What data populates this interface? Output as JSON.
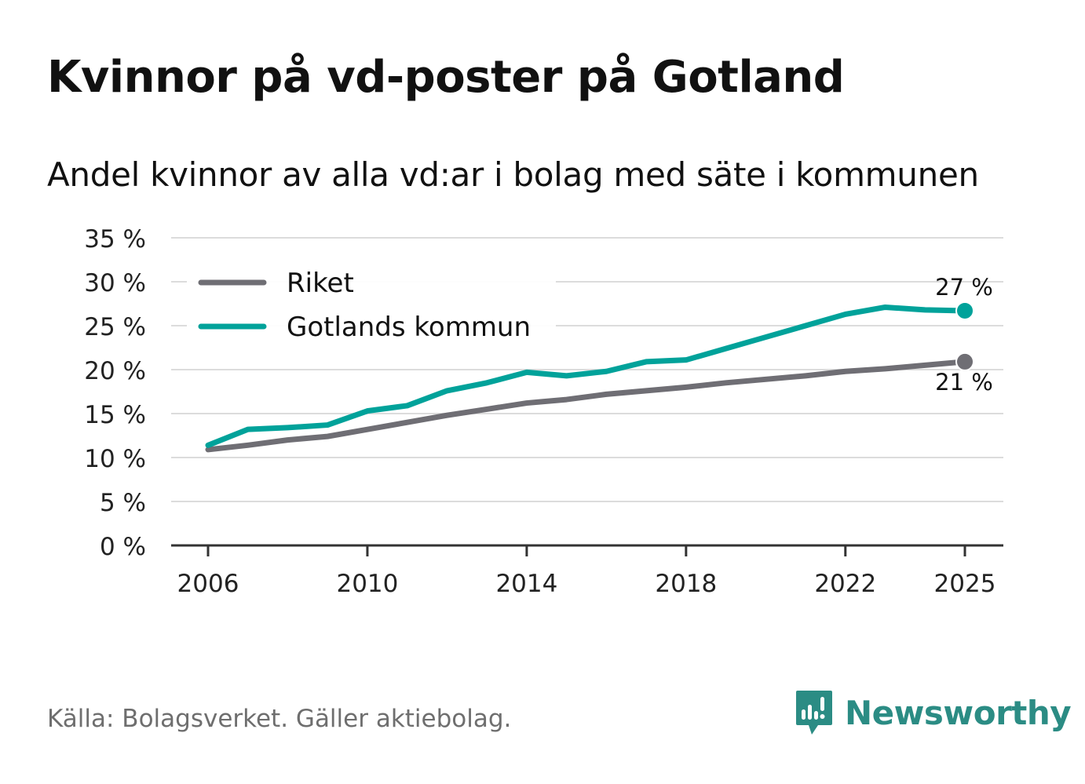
{
  "title": "Kvinnor på vd-poster på Gotland",
  "subtitle": "Andel kvinnor av alla vd:ar i bolag med säte i kommunen",
  "source": "Källa: Bolagsverket. Gäller aktiebolag.",
  "brand": {
    "name": "Newsworthy",
    "logo_icon": "newsworthy-logo-icon",
    "color": "#2b8c84"
  },
  "chart_data": {
    "type": "line",
    "x": [
      2006,
      2007,
      2008,
      2009,
      2010,
      2011,
      2012,
      2013,
      2014,
      2015,
      2016,
      2017,
      2018,
      2019,
      2020,
      2021,
      2022,
      2023,
      2024,
      2025
    ],
    "series": [
      {
        "name": "Riket",
        "color": "#6f6e74",
        "values": [
          10.9,
          11.4,
          12.0,
          12.4,
          13.2,
          14.0,
          14.8,
          15.5,
          16.2,
          16.6,
          17.2,
          17.6,
          18.0,
          18.5,
          18.9,
          19.3,
          19.8,
          20.1,
          20.5,
          20.9
        ],
        "end_label": "21 %"
      },
      {
        "name": "Gotlands kommun",
        "color": "#00a29a",
        "values": [
          11.4,
          13.2,
          13.4,
          13.7,
          15.3,
          15.9,
          17.6,
          18.5,
          19.7,
          19.3,
          19.8,
          20.9,
          21.1,
          22.4,
          23.7,
          25.0,
          26.3,
          27.1,
          26.8,
          26.7
        ],
        "end_label": "27 %"
      }
    ],
    "x_ticks": [
      2006,
      2010,
      2014,
      2018,
      2022,
      2025
    ],
    "y_ticks": [
      0,
      5,
      10,
      15,
      20,
      25,
      30,
      35
    ],
    "y_tick_labels": [
      "0 %",
      "5 %",
      "10 %",
      "15 %",
      "20 %",
      "25 %",
      "30 %",
      "35 %"
    ],
    "ylim": [
      0,
      35
    ],
    "xlim": [
      2006,
      2025
    ],
    "grid": true,
    "legend_position": "top-left"
  }
}
